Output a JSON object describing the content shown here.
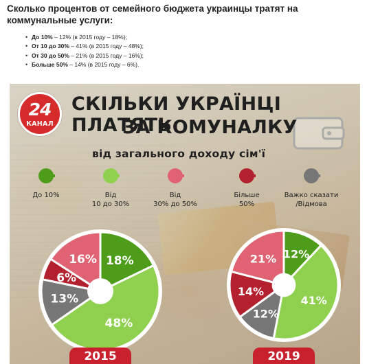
{
  "article": {
    "heading": "Сколько процентов от семейного бюджета украинцы тратят на коммунальные услуги:",
    "items": [
      {
        "bold": "До 10%",
        "rest": " – 12% (в 2015 году – 18%);"
      },
      {
        "bold": "От 10 до 30%",
        "rest": " – 41% (в 2015 году – 48%);"
      },
      {
        "bold": "От 30 до 50%",
        "rest": " – 21% (в 2015 году – 16%);"
      },
      {
        "bold": "Больше 50%",
        "rest": " – 14% (в 2015 году – 6%)."
      }
    ]
  },
  "infographic": {
    "logo": {
      "number": "24",
      "text": "КАНАЛ"
    },
    "title_line1": "СКІЛЬКИ УКРАЇНЦІ ПЛАТЯТЬ",
    "title_line2": "ЗА КОМУНАЛКУ",
    "subtitle": "від загального доходу сім'ї",
    "legend": [
      {
        "label": "До 10%",
        "color": "#4e9d1a"
      },
      {
        "label": "Від\n10 до 30%",
        "color": "#8fd14f"
      },
      {
        "label": "Від\n30% до 50%",
        "color": "#e06373"
      },
      {
        "label": "Більше\n50%",
        "color": "#b3202e"
      },
      {
        "label": "Важко сказати\n/Відмова",
        "color": "#777777"
      }
    ],
    "icons": [
      "map-pin-icon",
      "wallet-icon",
      "coin-icon"
    ]
  },
  "chart_data": [
    {
      "type": "pie",
      "year": "2015",
      "categories": [
        "До 10%",
        "Від 10 до 30%",
        "Важко сказати /Відмова",
        "Більше 50%",
        "Від 30% до 50%"
      ],
      "values": [
        18,
        48,
        13,
        6,
        16
      ],
      "labels": [
        "18%",
        "48%",
        "13%",
        "6%",
        "16%"
      ],
      "colors": [
        "#4e9d1a",
        "#8fd14f",
        "#777777",
        "#b3202e",
        "#e06373"
      ]
    },
    {
      "type": "pie",
      "year": "2019",
      "categories": [
        "До 10%",
        "Від 10 до 30%",
        "Важко сказати /Відмова",
        "Більше 50%",
        "Від 30% до 50%"
      ],
      "values": [
        12,
        41,
        12,
        14,
        21
      ],
      "labels": [
        "12%",
        "41%",
        "12%",
        "14%",
        "21%"
      ],
      "colors": [
        "#4e9d1a",
        "#8fd14f",
        "#777777",
        "#b3202e",
        "#e06373"
      ]
    }
  ]
}
